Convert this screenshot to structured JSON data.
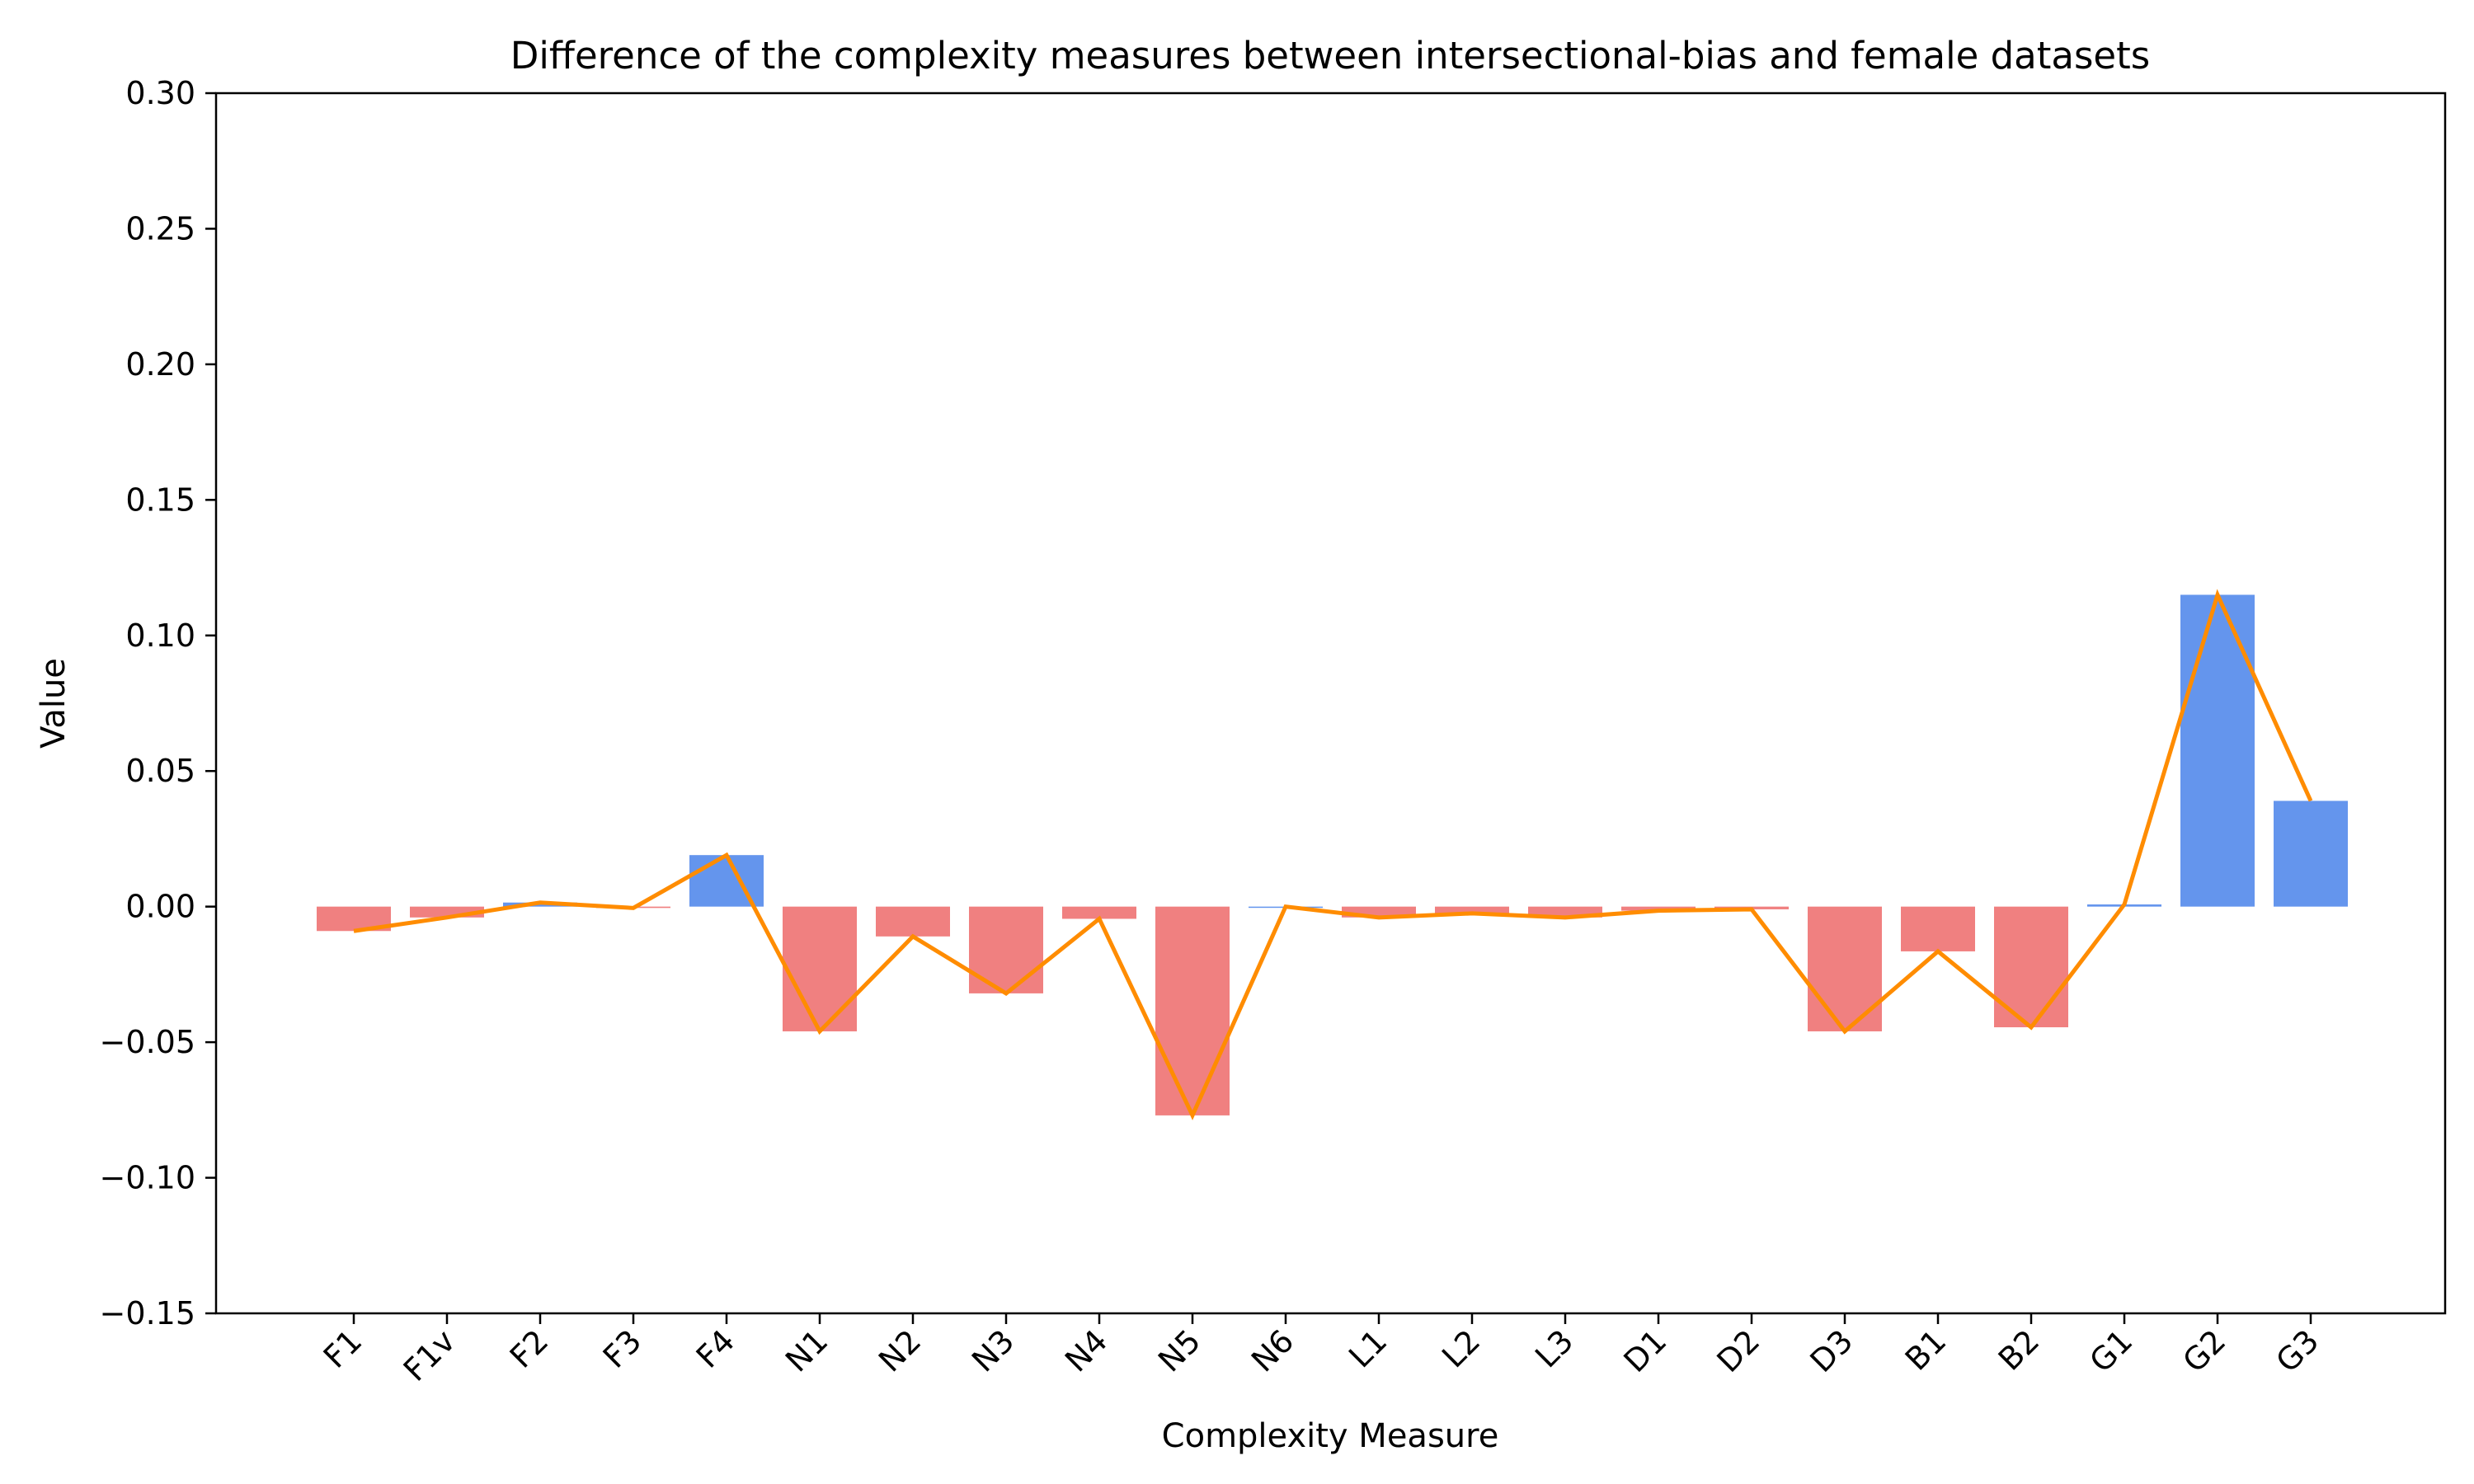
{
  "chart_data": {
    "type": "bar",
    "title": "Difference of the complexity measures between intersectional-bias and female datasets",
    "xlabel": "Complexity Measure",
    "ylabel": "Value",
    "ylim": [
      -0.15,
      0.3
    ],
    "yticks": [
      -0.15,
      -0.1,
      -0.05,
      0.0,
      0.05,
      0.1,
      0.15,
      0.2,
      0.25,
      0.3
    ],
    "ytick_labels": [
      "−0.15",
      "−0.10",
      "−0.05",
      "0.00",
      "0.05",
      "0.10",
      "0.15",
      "0.20",
      "0.25",
      "0.30"
    ],
    "grid": false,
    "categories": [
      "F1",
      "F1v",
      "F2",
      "F3",
      "F4",
      "N1",
      "N2",
      "N3",
      "N4",
      "N5",
      "N6",
      "L1",
      "L2",
      "L3",
      "D1",
      "D2",
      "D3",
      "B1",
      "B2",
      "G1",
      "G2",
      "G3"
    ],
    "values": [
      -0.009,
      -0.004,
      0.0015,
      -0.0005,
      0.019,
      -0.046,
      -0.011,
      -0.032,
      -0.0045,
      -0.077,
      0.0,
      -0.004,
      -0.0025,
      -0.004,
      -0.0015,
      -0.001,
      -0.046,
      -0.0165,
      -0.0445,
      0.0008,
      0.115,
      0.039
    ],
    "colors": {
      "positive_bar": "#6495ED",
      "negative_bar": "#F08080",
      "line": "#FF8C00",
      "axis": "#000000"
    },
    "overlay_line": "values connected by line"
  }
}
